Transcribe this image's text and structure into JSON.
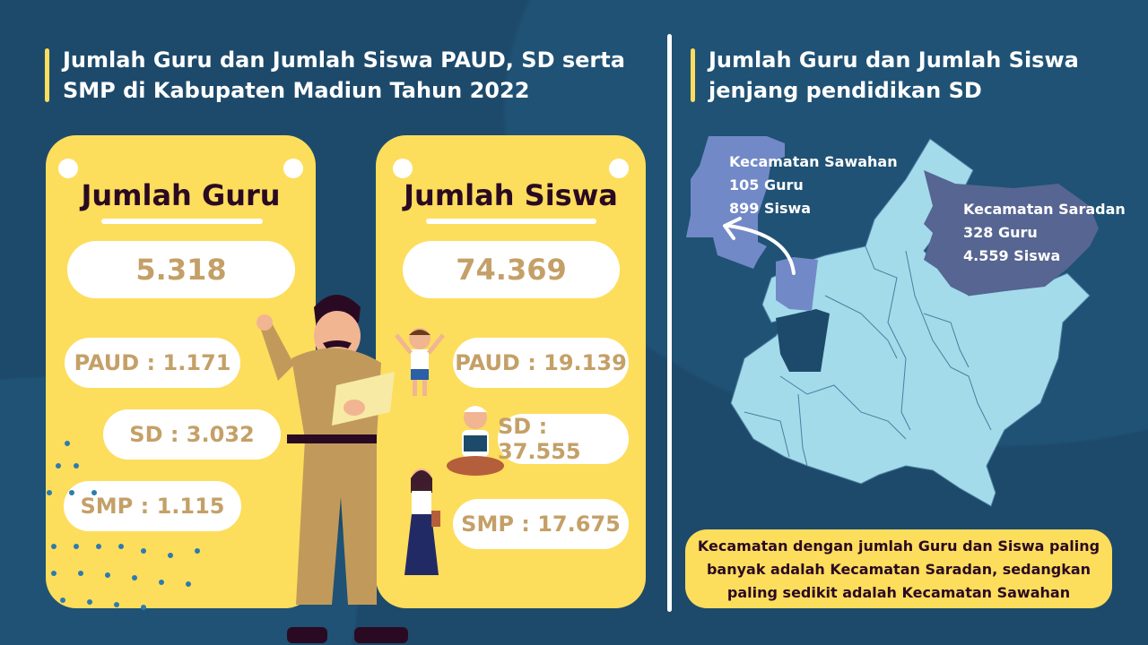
{
  "left": {
    "title": "Jumlah Guru dan Jumlah Siswa PAUD, SD serta SMP di Kabupaten Madiun Tahun 2022",
    "guru": {
      "heading": "Jumlah Guru",
      "total": "5.318",
      "paud": "PAUD : 1.171",
      "sd": "SD : 3.032",
      "smp": "SMP : 1.115"
    },
    "siswa": {
      "heading": "Jumlah Siswa",
      "total": "74.369",
      "paud": "PAUD : 19.139",
      "sd": "SD : 37.555",
      "smp": "SMP : 17.675"
    }
  },
  "right": {
    "title": "Jumlah Guru dan Jumlah Siswa jenjang pendidikan SD",
    "sawahan": {
      "name": "Kecamatan Sawahan",
      "guru": "105 Guru",
      "siswa": "899 Siswa"
    },
    "saradan": {
      "name": "Kecamatan Saradan",
      "guru": "328 Guru",
      "siswa": "4.559 Siswa"
    },
    "note": "Kecamatan dengan jumlah Guru dan Siswa paling banyak adalah Kecamatan Saradan, sedangkan paling sedikit adalah Kecamatan Sawahan"
  },
  "colors": {
    "background": "#1d4a6b",
    "card": "#fddd5c",
    "value_text": "#c4a068",
    "map_region": "#a3dbea",
    "sawahan": "#7289c7",
    "saradan": "#566591"
  }
}
